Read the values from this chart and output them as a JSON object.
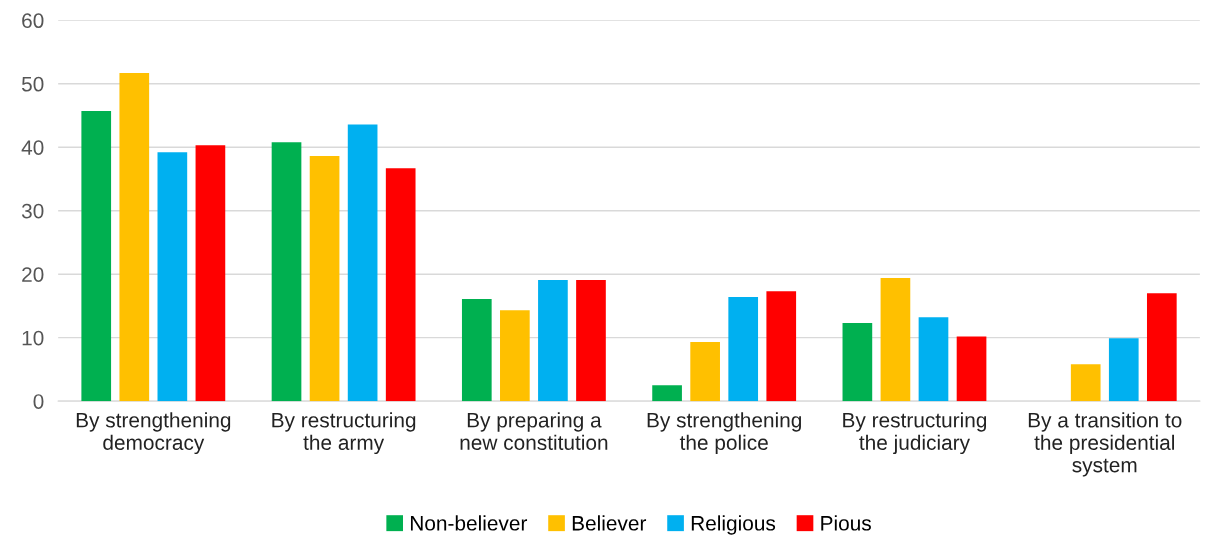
{
  "chart_data": {
    "type": "bar",
    "categories": [
      "By strengthening\ndemocracy",
      "By restructuring\nthe army",
      "By preparing a\nnew constitution",
      "By strengthening\nthe police",
      "By restructuring\nthe judiciary",
      "By a transition to\nthe presidential\nsystem"
    ],
    "series": [
      {
        "name": "Non-believer",
        "color": "#00b050",
        "values": [
          45.7,
          40.8,
          16.1,
          2.5,
          12.3,
          null
        ]
      },
      {
        "name": "Believer",
        "color": "#ffc000",
        "values": [
          51.7,
          38.6,
          14.3,
          9.3,
          19.4,
          5.8
        ]
      },
      {
        "name": "Religious",
        "color": "#00b0f0",
        "values": [
          39.2,
          43.6,
          19.1,
          16.4,
          13.2,
          9.9
        ]
      },
      {
        "name": "Pious",
        "color": "#ff0000",
        "values": [
          40.3,
          36.7,
          19.1,
          17.3,
          10.2,
          17.0
        ]
      }
    ],
    "ylim": [
      0,
      60
    ],
    "yticks": [
      0,
      10,
      20,
      30,
      40,
      50,
      60
    ],
    "grid": "y",
    "legend": "bottom"
  }
}
